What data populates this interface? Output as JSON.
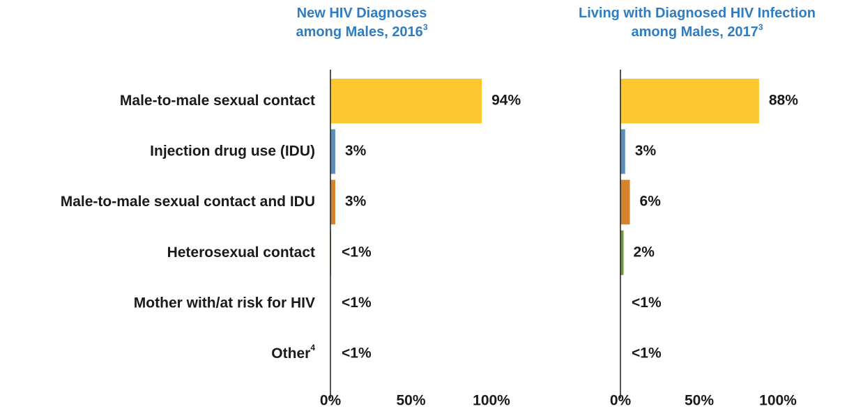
{
  "chart_data": [
    {
      "type": "bar",
      "orientation": "horizontal",
      "title": [
        "New HIV Diagnoses",
        "among Males, 2016"
      ],
      "title_footnote": "3",
      "categories": [
        "Male-to-male sexual contact",
        "Injection drug use (IDU)",
        "Male-to-male sexual contact and IDU",
        "Heterosexual contact",
        "Mother with/at risk for HIV",
        "Other"
      ],
      "category_footnote": {
        "index": 5,
        "label": "4"
      },
      "values": [
        94,
        3,
        3,
        0.4,
        0.1,
        0.1
      ],
      "value_labels": [
        "94%",
        "3%",
        "3%",
        "<1%",
        "<1%",
        "<1%"
      ],
      "colors": [
        "#fec72f",
        "#5b8db8",
        "#d6822f",
        "#6e9c3d",
        "#8a6aa8",
        "#9a9a9a"
      ],
      "xlim": [
        0,
        100
      ],
      "xticks": [
        {
          "value": 0,
          "label": "0%"
        },
        {
          "value": 50,
          "label": "50%"
        },
        {
          "value": 100,
          "label": "100%"
        }
      ]
    },
    {
      "type": "bar",
      "orientation": "horizontal",
      "title": [
        "Living with Diagnosed HIV Infection",
        "among Males, 2017"
      ],
      "title_footnote": "3",
      "values": [
        88,
        3,
        6,
        2,
        0.1,
        0.1
      ],
      "value_labels": [
        "88%",
        "3%",
        "6%",
        "2%",
        "<1%",
        "<1%"
      ],
      "colors": [
        "#fec72f",
        "#5b8db8",
        "#d6822f",
        "#6e9c3d",
        "#8a6aa8",
        "#9a9a9a"
      ],
      "xlim": [
        0,
        100
      ],
      "xticks": [
        {
          "value": 0,
          "label": "0%"
        },
        {
          "value": 50,
          "label": "50%"
        },
        {
          "value": 100,
          "label": "100%"
        }
      ]
    }
  ]
}
